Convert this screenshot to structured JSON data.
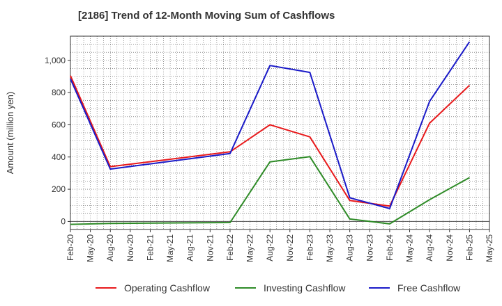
{
  "chart_data": {
    "type": "line",
    "title": "[2186]  Trend of 12-Month Moving Sum of Cashflows",
    "xlabel": "",
    "ylabel": "Amount (million yen)",
    "x": [
      "Feb-20",
      "May-20",
      "Aug-20",
      "Nov-20",
      "Feb-21",
      "May-21",
      "Aug-21",
      "Nov-21",
      "Feb-22",
      "May-22",
      "Aug-22",
      "Nov-22",
      "Feb-23",
      "May-23",
      "Aug-23",
      "Nov-23",
      "Feb-24",
      "May-24",
      "Aug-24",
      "Nov-24",
      "Feb-25",
      "May-25"
    ],
    "ylim": [
      -50,
      1150
    ],
    "yticks": [
      0,
      200,
      400,
      600,
      800,
      1000
    ],
    "ytick_labels": [
      "0",
      "200",
      "400",
      "600",
      "800",
      "1,000"
    ],
    "grid": true,
    "legend_position": "bottom",
    "series": [
      {
        "name": "Operating Cashflow",
        "color": "#e8191b",
        "points": [
          {
            "x": "Feb-20",
            "y": 905
          },
          {
            "x": "Aug-20",
            "y": 340
          },
          {
            "x": "Feb-22",
            "y": 432
          },
          {
            "x": "Aug-22",
            "y": 600
          },
          {
            "x": "Feb-23",
            "y": 525
          },
          {
            "x": "Aug-23",
            "y": 130
          },
          {
            "x": "Feb-24",
            "y": 95
          },
          {
            "x": "Aug-24",
            "y": 610
          },
          {
            "x": "Feb-25",
            "y": 845
          }
        ]
      },
      {
        "name": "Investing Cashflow",
        "color": "#2e8b27",
        "points": [
          {
            "x": "Feb-20",
            "y": -18
          },
          {
            "x": "Aug-20",
            "y": -12
          },
          {
            "x": "Feb-22",
            "y": -7
          },
          {
            "x": "Aug-22",
            "y": 370
          },
          {
            "x": "Feb-23",
            "y": 402
          },
          {
            "x": "Aug-23",
            "y": 15
          },
          {
            "x": "Feb-24",
            "y": -15
          },
          {
            "x": "Aug-24",
            "y": 135
          },
          {
            "x": "Feb-25",
            "y": 272
          }
        ]
      },
      {
        "name": "Free Cashflow",
        "color": "#1a1ac8",
        "points": [
          {
            "x": "Feb-20",
            "y": 885
          },
          {
            "x": "Aug-20",
            "y": 325
          },
          {
            "x": "Feb-22",
            "y": 422
          },
          {
            "x": "Aug-22",
            "y": 968
          },
          {
            "x": "Feb-23",
            "y": 925
          },
          {
            "x": "Aug-23",
            "y": 147
          },
          {
            "x": "Feb-24",
            "y": 80
          },
          {
            "x": "Aug-24",
            "y": 745
          },
          {
            "x": "Feb-25",
            "y": 1115
          }
        ]
      }
    ]
  }
}
